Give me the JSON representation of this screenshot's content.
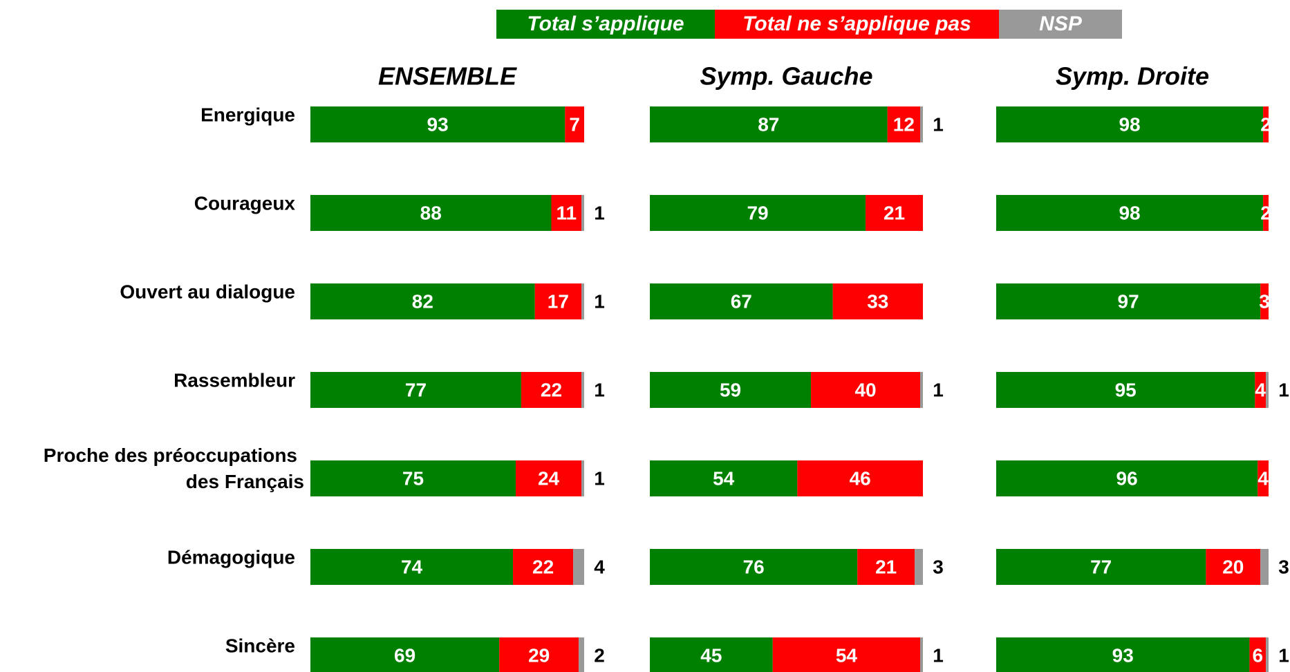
{
  "chart_data": {
    "type": "bar",
    "orientation": "horizontal",
    "stacked": true,
    "xlim": [
      0,
      100
    ],
    "categories": [
      "Energique",
      "Courageux",
      "Ouvert au dialogue",
      "Rassembleur",
      "Proche des préoccupations\ndes Français",
      "Démagogique",
      "Sincère"
    ],
    "series": [
      {
        "name": "Total s’applique",
        "color": "#008000"
      },
      {
        "name": "Total ne s’applique pas",
        "color": "#ff0000"
      },
      {
        "name": "NSP",
        "color": "#999999"
      }
    ],
    "panels": [
      {
        "title": "ENSEMBLE",
        "values": [
          [
            93,
            88,
            82,
            77,
            75,
            74,
            69
          ],
          [
            7,
            11,
            17,
            22,
            24,
            22,
            29
          ],
          [
            null,
            1,
            1,
            1,
            1,
            4,
            2
          ]
        ]
      },
      {
        "title": "Symp. Gauche",
        "values": [
          [
            87,
            79,
            67,
            59,
            54,
            76,
            45
          ],
          [
            12,
            21,
            33,
            40,
            46,
            21,
            54
          ],
          [
            1,
            null,
            null,
            1,
            null,
            3,
            1
          ]
        ]
      },
      {
        "title": "Symp. Droite",
        "values": [
          [
            98,
            98,
            97,
            95,
            96,
            77,
            93
          ],
          [
            2,
            2,
            3,
            4,
            4,
            20,
            6
          ],
          [
            null,
            null,
            null,
            1,
            null,
            3,
            1
          ]
        ]
      }
    ]
  }
}
